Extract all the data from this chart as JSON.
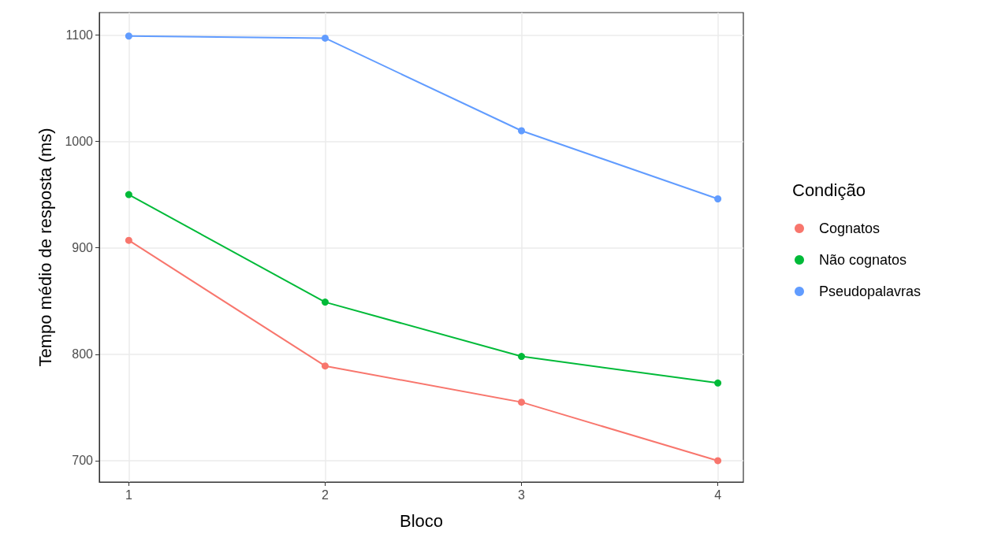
{
  "chart_data": {
    "type": "line",
    "xlabel": "Bloco",
    "ylabel": "Tempo médio de resposta (ms)",
    "legend_title": "Condição",
    "x": [
      1,
      2,
      3,
      4
    ],
    "series": [
      {
        "name": "Cognatos",
        "color": "#f8766d",
        "values": [
          907,
          789,
          755,
          700
        ]
      },
      {
        "name": "Não cognatos",
        "color": "#00ba38",
        "values": [
          950,
          849,
          798,
          773
        ]
      },
      {
        "name": "Pseudopalavras",
        "color": "#619cff",
        "values": [
          1099,
          1097,
          1010,
          946
        ]
      }
    ],
    "xlim": [
      0.85,
      4.13
    ],
    "xticks": [
      1,
      2,
      3,
      4
    ],
    "ylim": [
      680,
      1121
    ],
    "yticks": [
      700,
      800,
      900,
      1000,
      1100
    ],
    "grid": true,
    "legend": "right",
    "marker": "circle",
    "line_style": "solid"
  }
}
